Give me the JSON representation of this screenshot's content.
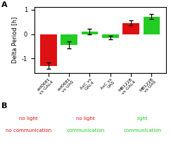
{
  "chart_data": {
    "type": "bar",
    "categories": [
      "sid0681\nvs GAL4",
      "sid0681\nvs UAS",
      "AsC vs\nGAL4",
      "AsC vs\nUAS",
      "MB122B\nvs GAL4",
      "MB122B\nvs UAS"
    ],
    "values": [
      -1.3,
      -0.45,
      0.1,
      -0.15,
      0.45,
      0.72
    ],
    "errors": [
      0.12,
      0.15,
      0.12,
      0.07,
      0.1,
      0.1
    ],
    "colors": [
      "#dd1111",
      "#22cc22",
      "#22cc22",
      "#22cc22",
      "#dd1111",
      "#22cc22"
    ],
    "ylim": [
      -1.6,
      1.1
    ],
    "yticks": [
      -1,
      0,
      1
    ],
    "ylabel": "Delta Period [h]",
    "annotations": [
      {
        "text": "A"
      },
      {
        "text": "B"
      },
      {
        "text": "no light",
        "color": "#dd1111"
      },
      {
        "text": "no communication",
        "color": "#dd1111"
      },
      {
        "text": "no light",
        "color": "#dd1111"
      },
      {
        "text": "communication",
        "color": "#22cc22"
      },
      {
        "text": "light",
        "color": "#22cc22"
      },
      {
        "text": "communication",
        "color": "#22cc22"
      }
    ]
  }
}
